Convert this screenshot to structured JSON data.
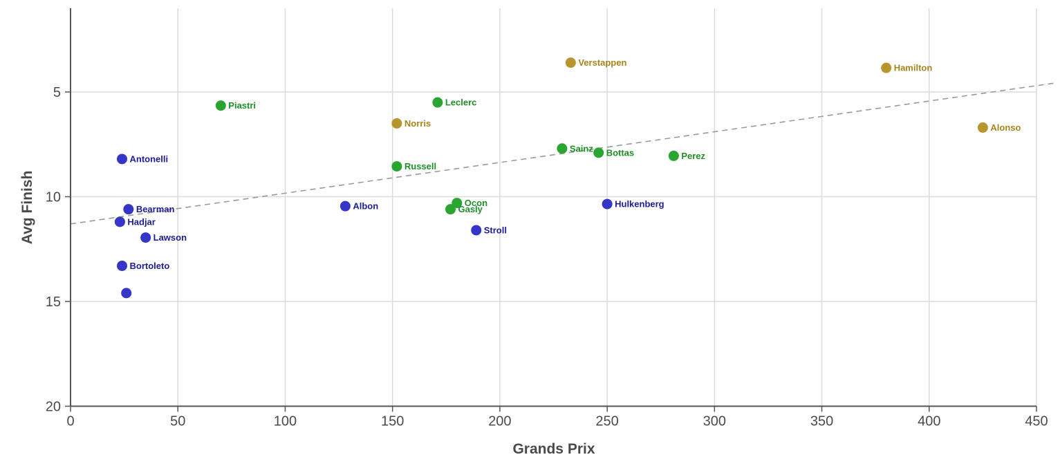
{
  "chart_data": {
    "type": "scatter",
    "xlabel": "Grands Prix",
    "ylabel": "Avg Finish",
    "xlim": [
      0,
      450
    ],
    "ylim": [
      20,
      1
    ],
    "y_inverted": true,
    "xticks": [
      0,
      50,
      100,
      150,
      200,
      250,
      300,
      350,
      400,
      450
    ],
    "yticks": [
      5,
      10,
      15,
      20
    ],
    "grid": true,
    "legend": "none",
    "trendline": {
      "style": "dashed",
      "color": "#9a9a9a",
      "points": [
        [
          0,
          11.3
        ],
        [
          450,
          4.7
        ]
      ]
    },
    "groups": [
      {
        "color": "#b8962e",
        "label_color": "#a8841c"
      },
      {
        "color": "#2aa532",
        "label_color": "#1f8f28"
      },
      {
        "color": "#3535c8",
        "label_color": "#1c1c94"
      }
    ],
    "points": [
      {
        "name": "Verstappen",
        "x": 233,
        "y": 3.6,
        "group": 0
      },
      {
        "name": "Hamilton",
        "x": 380,
        "y": 3.85,
        "group": 0
      },
      {
        "name": "Alonso",
        "x": 425,
        "y": 6.7,
        "group": 0
      },
      {
        "name": "Norris",
        "x": 152,
        "y": 6.5,
        "group": 0
      },
      {
        "name": "Piastri",
        "x": 70,
        "y": 5.65,
        "group": 1
      },
      {
        "name": "Leclerc",
        "x": 171,
        "y": 5.5,
        "group": 1
      },
      {
        "name": "Russell",
        "x": 152,
        "y": 8.55,
        "group": 1
      },
      {
        "name": "Sainz",
        "x": 229,
        "y": 7.7,
        "group": 1
      },
      {
        "name": "Bottas",
        "x": 246,
        "y": 7.9,
        "group": 1
      },
      {
        "name": "Perez",
        "x": 281,
        "y": 8.05,
        "group": 1
      },
      {
        "name": "Ocon",
        "x": 180,
        "y": 10.3,
        "group": 1
      },
      {
        "name": "Gasly",
        "x": 177,
        "y": 10.6,
        "group": 1
      },
      {
        "name": "Antonelli",
        "x": 24,
        "y": 8.2,
        "group": 2
      },
      {
        "name": "Bearman",
        "x": 27,
        "y": 10.6,
        "group": 2
      },
      {
        "name": "Hadjar",
        "x": 23,
        "y": 11.2,
        "group": 2
      },
      {
        "name": "Lawson",
        "x": 35,
        "y": 11.95,
        "group": 2
      },
      {
        "name": "Bortoleto",
        "x": 24,
        "y": 13.3,
        "group": 2
      },
      {
        "name": "Albon",
        "x": 128,
        "y": 10.45,
        "group": 2
      },
      {
        "name": "Hulkenberg",
        "x": 250,
        "y": 10.35,
        "group": 2
      },
      {
        "name": "Stroll",
        "x": 189,
        "y": 11.6,
        "group": 2
      },
      {
        "name": "",
        "x": 26,
        "y": 14.6,
        "group": 2
      }
    ]
  }
}
